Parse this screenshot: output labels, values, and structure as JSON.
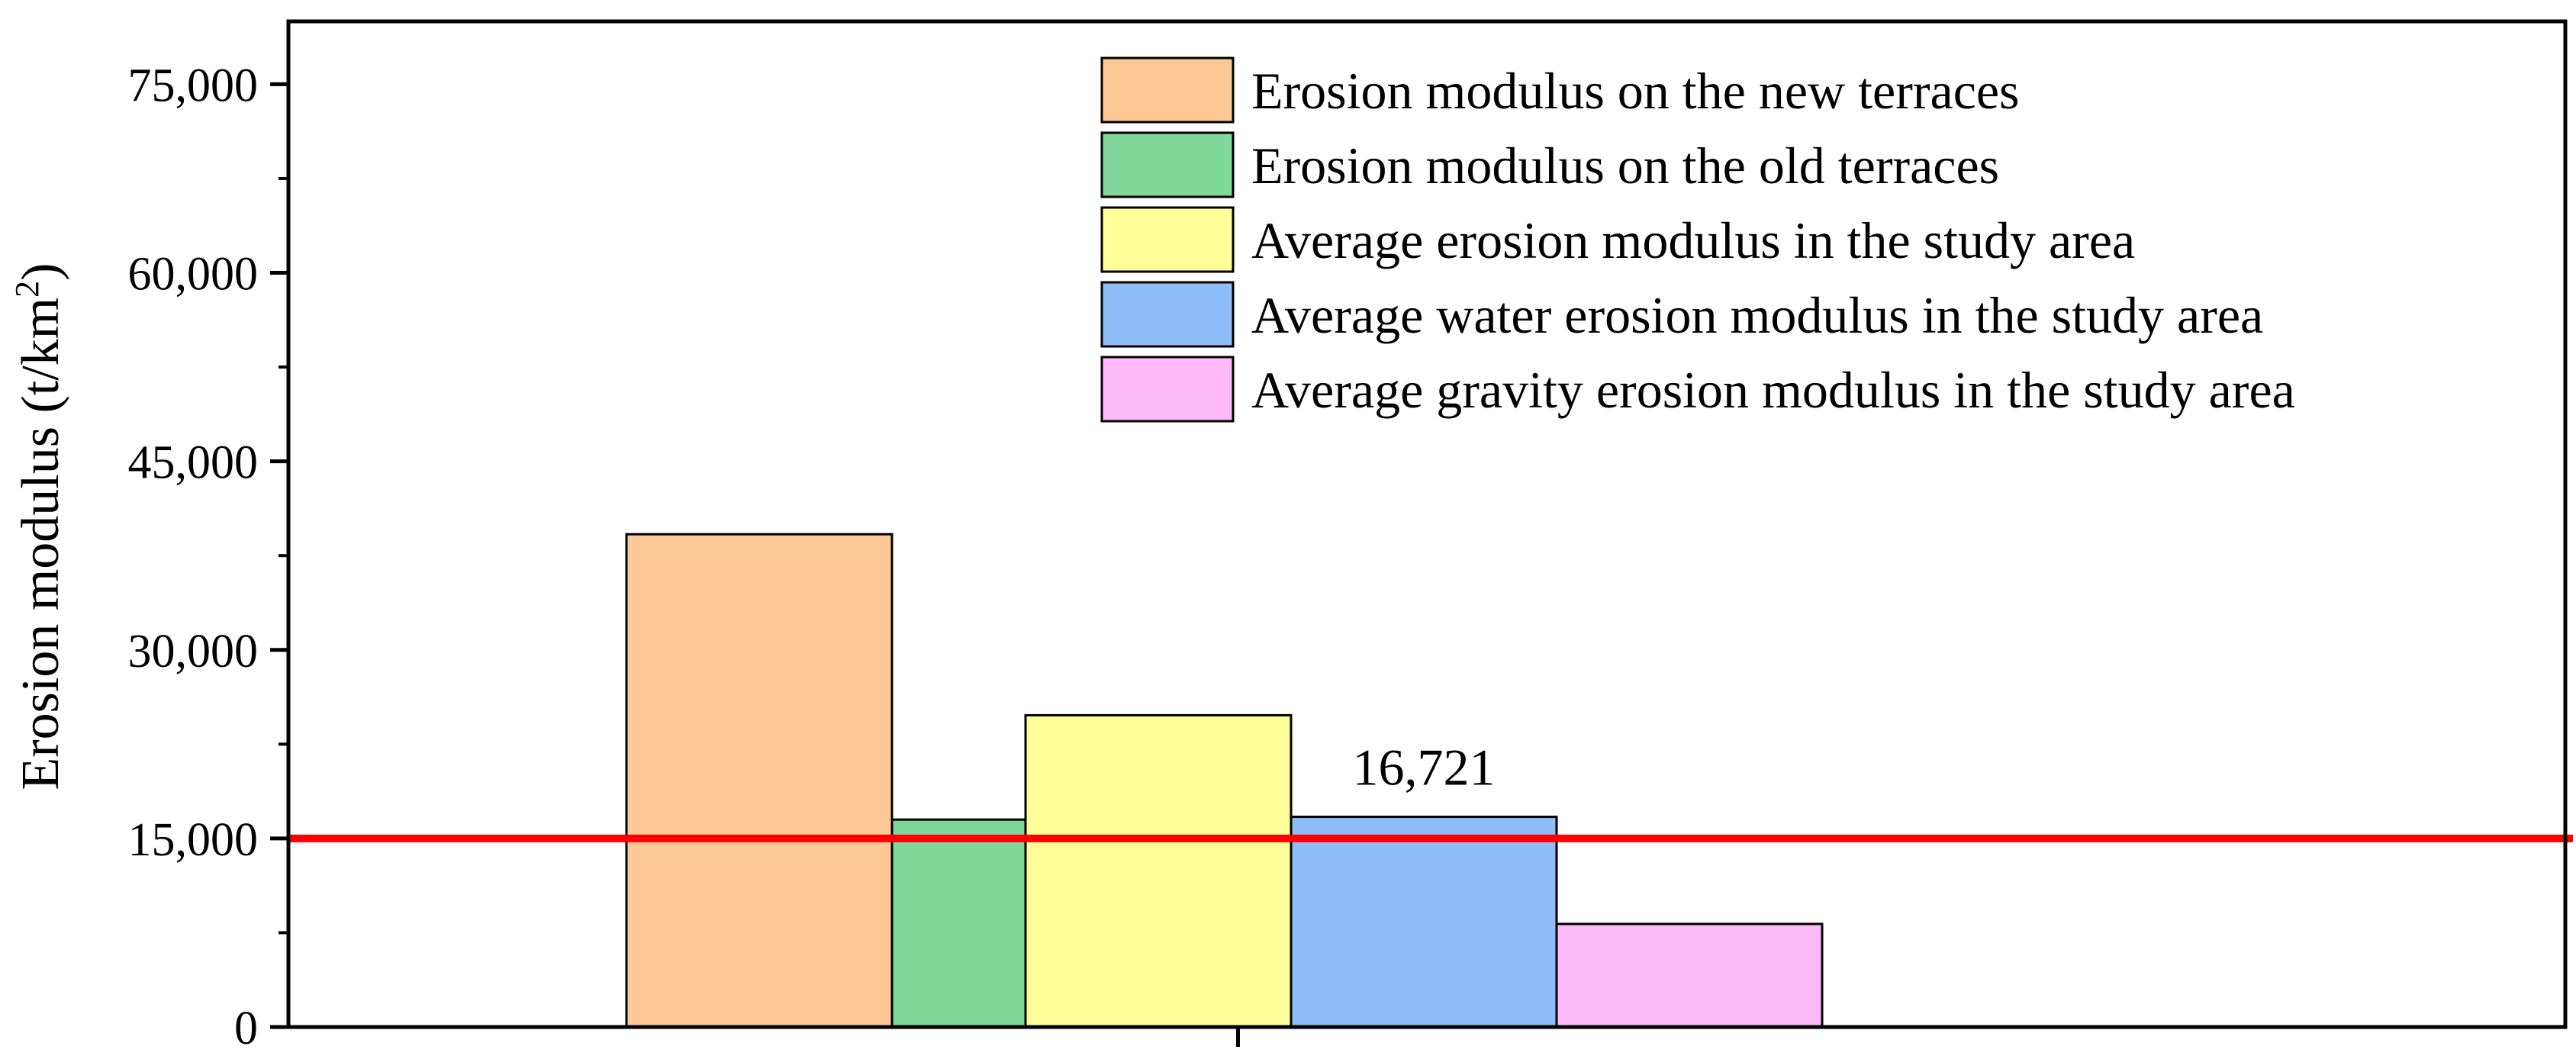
{
  "chart_data": {
    "type": "bar",
    "title": "",
    "ylabel": "Erosion modulus (t/km",
    "ylabel_sup": "2",
    "ylabel_close": ")",
    "xlabel": "",
    "ylim": [
      0,
      80000
    ],
    "yticks": [
      0,
      15000,
      30000,
      45000,
      60000,
      75000
    ],
    "ytick_labels": [
      "0",
      "15,000",
      "30,000",
      "45,000",
      "60,000",
      "75,000"
    ],
    "grid": false,
    "legend_position": "top-right",
    "groups": [
      {
        "bars": [
          {
            "series": 0,
            "value": 39200
          },
          {
            "series": 1,
            "value": 16500
          }
        ]
      },
      {
        "bars": [
          {
            "series": 2,
            "value": 24800
          },
          {
            "series": 3,
            "value": 16721,
            "label": "16,721"
          },
          {
            "series": 4,
            "value": 8200
          }
        ]
      }
    ],
    "series": [
      {
        "name": "Erosion modulus on the new terraces",
        "color": "#FDC896"
      },
      {
        "name": "Erosion modulus on the old terraces",
        "color": "#80D99A"
      },
      {
        "name": "Average erosion modulus in the study area",
        "color": "#FFFF99"
      },
      {
        "name": "Average water erosion modulus in the study area",
        "color": "#8FBDF7"
      },
      {
        "name": "Average gravity erosion modulus in the study area",
        "color": "#FDB9F9"
      }
    ],
    "reference_line": {
      "value": 15000,
      "color": "#FF0000"
    }
  }
}
